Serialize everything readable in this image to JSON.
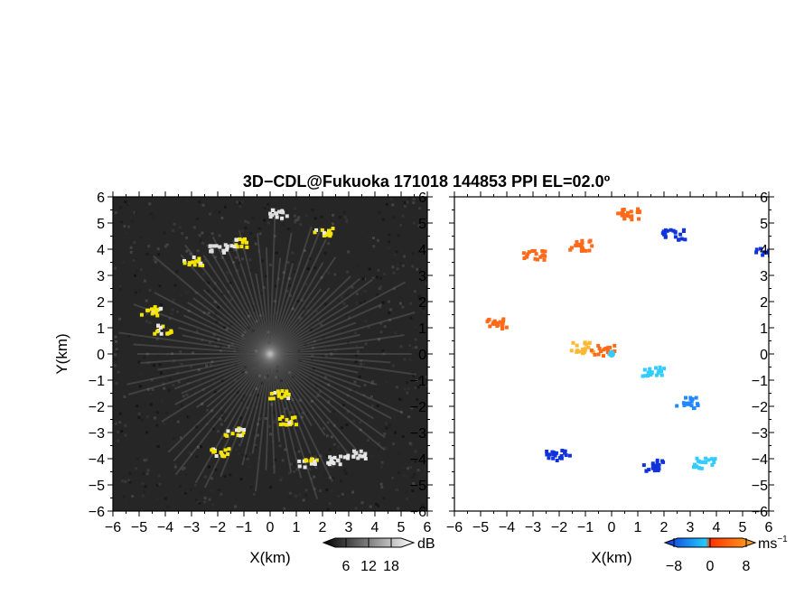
{
  "title": "3D−CDL@Fukuoka 171018 144853 PPI EL=02.0º",
  "chart_data": [
    {
      "type": "heatmap",
      "panel": "left",
      "quantity": "reflectivity",
      "xlabel": "X(km)",
      "ylabel": "Y(km)",
      "xlim": [
        -6,
        6
      ],
      "ylim": [
        -6,
        6
      ],
      "x_ticks": [
        -6,
        -5,
        -4,
        -3,
        -2,
        -1,
        0,
        1,
        2,
        3,
        4,
        5,
        6
      ],
      "y_ticks": [
        -6,
        -5,
        -4,
        -3,
        -2,
        -1,
        0,
        1,
        2,
        3,
        4,
        5,
        6
      ],
      "x_tick_labels": [
        "−6",
        "−5",
        "−4",
        "−3",
        "−2",
        "−1",
        "0",
        "1",
        "2",
        "3",
        "4",
        "5",
        "6"
      ],
      "y_tick_labels": [
        "−6",
        "−5",
        "−4",
        "−3",
        "−2",
        "−1",
        "0",
        "1",
        "2",
        "3",
        "4",
        "5",
        "6"
      ],
      "colorbar": {
        "unit": "dB",
        "tick_labels": [
          "6",
          "12",
          "18"
        ],
        "ticks": [
          6,
          12,
          18
        ],
        "range": [
          0,
          24
        ],
        "colors": [
          "#000000",
          "#ffffff"
        ]
      },
      "features": [
        {
          "x": 0.3,
          "y": -1.5,
          "level": "high"
        },
        {
          "x": 0.6,
          "y": -2.5,
          "level": "high"
        },
        {
          "x": 1.4,
          "y": -4.1,
          "level": "high"
        },
        {
          "x": 2.5,
          "y": -4.0,
          "level": "mid"
        },
        {
          "x": 3.2,
          "y": -3.8,
          "level": "mid"
        },
        {
          "x": -4.2,
          "y": 1.0,
          "level": "high"
        },
        {
          "x": -4.6,
          "y": 1.7,
          "level": "high"
        },
        {
          "x": -3.0,
          "y": 3.6,
          "level": "high"
        },
        {
          "x": -1.2,
          "y": 4.3,
          "level": "high"
        },
        {
          "x": -2.0,
          "y": 4.1,
          "level": "mid"
        },
        {
          "x": 0.2,
          "y": 5.4,
          "level": "mid"
        },
        {
          "x": 2.0,
          "y": 4.7,
          "level": "high"
        },
        {
          "x": -2.0,
          "y": -3.7,
          "level": "high"
        },
        {
          "x": -1.4,
          "y": -2.9,
          "level": "high"
        }
      ]
    },
    {
      "type": "heatmap",
      "panel": "right",
      "quantity": "radial velocity",
      "xlabel": "X(km)",
      "xlim": [
        -6,
        6
      ],
      "ylim": [
        -6,
        6
      ],
      "x_ticks": [
        -6,
        -5,
        -4,
        -3,
        -2,
        -1,
        0,
        1,
        2,
        3,
        4,
        5,
        6
      ],
      "y_ticks": [
        -6,
        -5,
        -4,
        -3,
        -2,
        -1,
        0,
        1,
        2,
        3,
        4,
        5,
        6
      ],
      "x_tick_labels": [
        "−6",
        "−5",
        "−4",
        "−3",
        "−2",
        "−1",
        "0",
        "1",
        "2",
        "3",
        "4",
        "5",
        "6"
      ],
      "y_tick_labels": [
        "−6",
        "−5",
        "−4",
        "−3",
        "−2",
        "−1",
        "0",
        "1",
        "2",
        "3",
        "4",
        "5",
        "6"
      ],
      "colorbar": {
        "unit": "ms",
        "unit_exponent": "−1",
        "tick_labels": [
          "−8",
          "0",
          "8"
        ],
        "ticks": [
          -8,
          0,
          8
        ],
        "range": [
          -10,
          10
        ],
        "colors": [
          "#1133dd",
          "#22ccff",
          "#ff3300",
          "#ffaa22"
        ]
      },
      "features": [
        {
          "x": -3.0,
          "y": 3.8,
          "v": 5
        },
        {
          "x": -1.2,
          "y": 4.2,
          "v": 5
        },
        {
          "x": 0.6,
          "y": 5.4,
          "v": 6
        },
        {
          "x": -4.5,
          "y": 1.2,
          "v": 6
        },
        {
          "x": -1.2,
          "y": 0.3,
          "v": 7
        },
        {
          "x": -0.4,
          "y": 0.2,
          "v": 6
        },
        {
          "x": 1.5,
          "y": -0.6,
          "v": -4
        },
        {
          "x": 2.8,
          "y": -1.8,
          "v": -5
        },
        {
          "x": 3.5,
          "y": -4.1,
          "v": -4
        },
        {
          "x": 1.5,
          "y": -4.2,
          "v": -7
        },
        {
          "x": 2.3,
          "y": 4.6,
          "v": -7
        },
        {
          "x": -2.1,
          "y": -3.8,
          "v": -8
        },
        {
          "x": 5.9,
          "y": 3.9,
          "v": -8
        }
      ]
    }
  ]
}
